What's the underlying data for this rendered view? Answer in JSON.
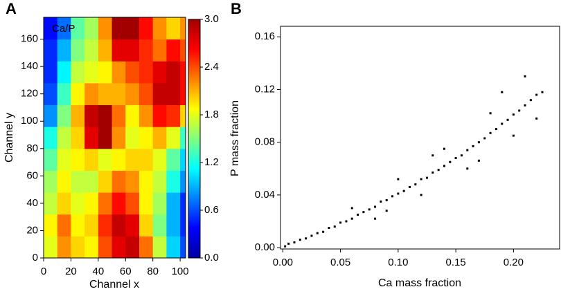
{
  "chart_data": [
    {
      "type": "heatmap",
      "panel_label": "A",
      "annotation": "Ca/P",
      "x_label": "Channel x",
      "y_label": "Channel y",
      "xbins": [
        0,
        10,
        20,
        30,
        40,
        50,
        60,
        70,
        80,
        90,
        100,
        104
      ],
      "ybins": [
        0,
        16,
        32,
        48,
        64,
        80,
        96,
        112,
        128,
        144,
        160,
        176
      ],
      "values": [
        [
          1.8,
          2.2,
          2.0,
          1.9,
          2.4,
          2.7,
          2.8,
          2.3,
          1.7,
          1.0,
          0.6
        ],
        [
          1.9,
          2.3,
          1.9,
          2.0,
          2.5,
          2.8,
          2.7,
          2.0,
          1.5,
          0.9,
          0.5
        ],
        [
          1.7,
          2.0,
          1.8,
          1.9,
          2.3,
          2.6,
          2.4,
          1.9,
          1.6,
          0.9,
          0.5
        ],
        [
          1.6,
          1.9,
          1.7,
          1.7,
          2.0,
          2.3,
          2.2,
          1.9,
          1.7,
          1.2,
          0.8
        ],
        [
          1.4,
          1.8,
          1.9,
          2.0,
          1.8,
          1.9,
          2.0,
          2.0,
          1.8,
          1.4,
          1.0
        ],
        [
          1.2,
          1.7,
          2.0,
          2.7,
          2.9,
          2.2,
          1.8,
          1.9,
          2.1,
          1.8,
          1.3
        ],
        [
          0.8,
          1.5,
          2.1,
          2.8,
          2.9,
          2.3,
          1.9,
          2.2,
          2.6,
          2.5,
          2.0
        ],
        [
          0.6,
          1.3,
          1.9,
          2.2,
          2.1,
          2.1,
          2.2,
          2.4,
          2.8,
          2.8,
          2.6
        ],
        [
          0.5,
          1.1,
          1.7,
          1.8,
          1.9,
          2.2,
          2.4,
          2.5,
          2.7,
          2.8,
          2.6
        ],
        [
          0.5,
          0.9,
          1.5,
          1.7,
          2.1,
          2.7,
          2.7,
          2.5,
          2.3,
          2.6,
          2.4
        ],
        [
          0.4,
          0.7,
          1.4,
          1.6,
          2.2,
          2.9,
          2.9,
          2.6,
          2.2,
          2.0,
          2.2
        ]
      ],
      "xlim": [
        0,
        104
      ],
      "ylim": [
        0,
        176
      ],
      "xticks": [
        0,
        20,
        40,
        60,
        80,
        100
      ],
      "yticks": [
        0,
        20,
        40,
        60,
        80,
        100,
        120,
        140,
        160
      ],
      "colormap": "jet",
      "clim": [
        0,
        3
      ],
      "cticks": [
        {
          "value": 0,
          "label": "0.0"
        },
        {
          "value": 0.6,
          "label": "0.6"
        },
        {
          "value": 1.2,
          "label": "1.2"
        },
        {
          "value": 1.8,
          "label": "1.8"
        },
        {
          "value": 2.4,
          "label": "2.4"
        },
        {
          "value": 3,
          "label": "3.0"
        }
      ]
    },
    {
      "type": "scatter",
      "panel_label": "B",
      "x_label": "Ca mass fraction",
      "y_label": "P mass fraction",
      "color": "#000000",
      "x": [
        0.002,
        0.005,
        0.01,
        0.015,
        0.02,
        0.025,
        0.03,
        0.035,
        0.04,
        0.045,
        0.05,
        0.055,
        0.06,
        0.065,
        0.07,
        0.075,
        0.08,
        0.085,
        0.09,
        0.095,
        0.1,
        0.105,
        0.11,
        0.115,
        0.12,
        0.125,
        0.13,
        0.135,
        0.14,
        0.145,
        0.15,
        0.155,
        0.16,
        0.165,
        0.17,
        0.175,
        0.18,
        0.185,
        0.19,
        0.195,
        0.2,
        0.205,
        0.21,
        0.215,
        0.22,
        0.225,
        0.06,
        0.08,
        0.1,
        0.12,
        0.14,
        0.16,
        0.18,
        0.2,
        0.21,
        0.17,
        0.13,
        0.09,
        0.19,
        0.22
      ],
      "y": [
        0.001,
        0.003,
        0.004,
        0.006,
        0.007,
        0.009,
        0.011,
        0.012,
        0.015,
        0.016,
        0.019,
        0.02,
        0.022,
        0.025,
        0.027,
        0.029,
        0.031,
        0.035,
        0.036,
        0.039,
        0.041,
        0.043,
        0.046,
        0.048,
        0.052,
        0.053,
        0.057,
        0.059,
        0.062,
        0.065,
        0.068,
        0.07,
        0.074,
        0.077,
        0.08,
        0.083,
        0.087,
        0.09,
        0.094,
        0.097,
        0.101,
        0.104,
        0.108,
        0.112,
        0.116,
        0.118,
        0.03,
        0.022,
        0.052,
        0.04,
        0.075,
        0.06,
        0.102,
        0.085,
        0.13,
        0.066,
        0.07,
        0.028,
        0.118,
        0.098
      ],
      "xlim": [
        -0.002,
        0.24
      ],
      "ylim": [
        -0.001,
        0.168
      ],
      "xticks": [
        {
          "value": 0,
          "label": "0.00"
        },
        {
          "value": 0.05,
          "label": "0.05"
        },
        {
          "value": 0.1,
          "label": "0.10"
        },
        {
          "value": 0.15,
          "label": "0.15"
        },
        {
          "value": 0.2,
          "label": "0.20"
        }
      ],
      "yticks": [
        {
          "value": 0,
          "label": "0.00"
        },
        {
          "value": 0.04,
          "label": "0.04"
        },
        {
          "value": 0.08,
          "label": "0.08"
        },
        {
          "value": 0.12,
          "label": "0.12"
        },
        {
          "value": 0.16,
          "label": "0.16"
        }
      ]
    }
  ]
}
